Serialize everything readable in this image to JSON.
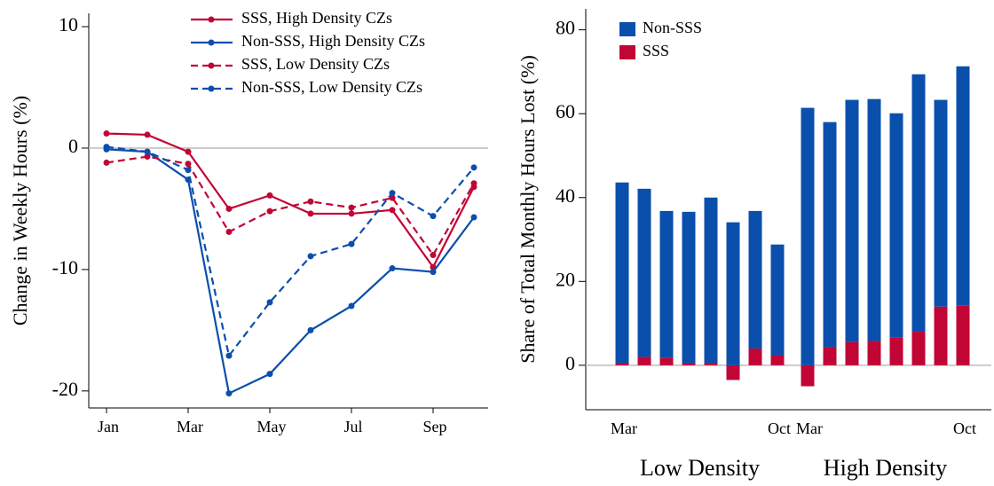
{
  "chart_data": [
    {
      "type": "line",
      "y_label": "Change in Weekly Hours (%)",
      "categories": [
        "Jan",
        null,
        "Mar",
        null,
        "May",
        null,
        "Jul",
        null,
        "Sep",
        null
      ],
      "ylim": [
        -21.4,
        11.1
      ],
      "yticks": [
        -20,
        -10,
        0,
        10
      ],
      "hline": 0,
      "legend": "top",
      "series": [
        {
          "name": "SSS, High Density CZs",
          "color": "#c10534",
          "line_style": "solid",
          "values": [
            1.2,
            1.1,
            -0.3,
            -5.0,
            -3.9,
            -5.4,
            -5.4,
            -5.1,
            -9.8,
            -3.2
          ]
        },
        {
          "name": "Non-SSS, High Density CZs",
          "color": "#0b4fad",
          "line_style": "solid",
          "values": [
            -0.1,
            -0.3,
            -2.6,
            -20.2,
            -18.6,
            -15.0,
            -13.0,
            -9.9,
            -10.2,
            -5.7
          ]
        },
        {
          "name": "SSS, Low Density CZs",
          "color": "#c10534",
          "line_style": "dashed",
          "values": [
            -1.2,
            -0.7,
            -1.3,
            -6.9,
            -5.2,
            -4.4,
            -4.9,
            -4.1,
            -8.8,
            -2.9
          ]
        },
        {
          "name": "Non-SSS, Low Density CZs",
          "color": "#0b4fad",
          "line_style": "dashed",
          "values": [
            0.1,
            -0.3,
            -1.8,
            -17.1,
            -12.7,
            -8.9,
            -7.9,
            -3.7,
            -5.6,
            -1.6
          ]
        }
      ]
    },
    {
      "type": "bar",
      "stacked": true,
      "y_label": "Share of Total Monthly Hours Lost (%)",
      "groups": [
        "Low Density",
        "High Density"
      ],
      "categories": [
        "Mar",
        null,
        null,
        null,
        null,
        null,
        null,
        "Oct",
        "Mar",
        null,
        null,
        null,
        null,
        null,
        null,
        "Oct"
      ],
      "ylim": [
        -10.6,
        85
      ],
      "yticks": [
        0,
        20,
        40,
        60,
        80
      ],
      "hline": 0,
      "legend": "upper left",
      "series": [
        {
          "name": "Non-SSS",
          "color": "#0b4fad",
          "values": [
            43.1,
            40.1,
            35.0,
            36.1,
            39.5,
            34.1,
            32.8,
            26.4,
            61.4,
            53.6,
            57.8,
            57.7,
            53.5,
            61.4,
            49.3,
            57.1
          ]
        },
        {
          "name": "SSS",
          "color": "#c10534",
          "values": [
            0.5,
            2.0,
            1.8,
            0.5,
            0.5,
            -3.5,
            4.0,
            2.4,
            -5.0,
            4.4,
            5.5,
            5.8,
            6.6,
            8.0,
            14.0,
            14.2
          ]
        }
      ]
    }
  ]
}
